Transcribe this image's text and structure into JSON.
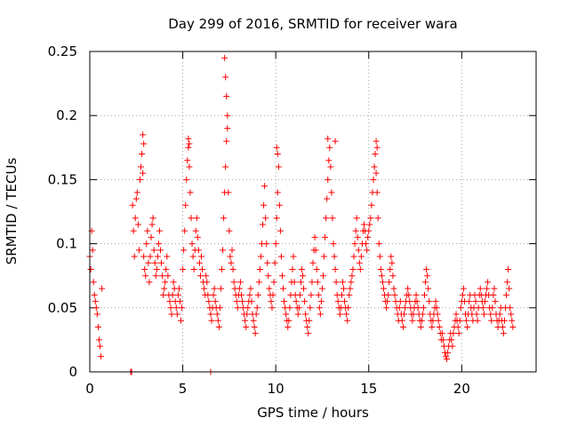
{
  "chart_data": {
    "type": "scatter",
    "title": "Day 299 of 2016, SRMTID for receiver wara",
    "xlabel": "GPS time / hours",
    "ylabel": "SRMTID / TECUs",
    "xlim": [
      0,
      24
    ],
    "ylim": [
      0,
      0.25
    ],
    "x_ticks": [
      0,
      5,
      10,
      15,
      20
    ],
    "x_tick_labels": [
      "0",
      "5",
      "10",
      "15",
      "20"
    ],
    "y_ticks": [
      0,
      0.05,
      0.1,
      0.15,
      0.2,
      0.25
    ],
    "y_tick_labels": [
      "0",
      "0.05",
      "0.1",
      "0.15",
      "0.2",
      "0.25"
    ],
    "grid": true,
    "marker": "+",
    "series": [
      {
        "name": "SRMTID",
        "color": "#ff0000",
        "x": [
          0.0,
          0.05,
          0.1,
          0.15,
          0.2,
          0.25,
          0.3,
          0.35,
          0.4,
          0.45,
          0.5,
          0.55,
          0.6,
          0.65,
          2.3,
          2.35,
          2.4,
          2.45,
          2.5,
          2.55,
          2.6,
          2.65,
          2.7,
          2.75,
          2.8,
          2.85,
          2.9,
          2.95,
          3.0,
          3.05,
          3.1,
          3.15,
          3.2,
          3.25,
          3.3,
          3.35,
          3.4,
          3.45,
          3.5,
          3.55,
          3.6,
          3.65,
          3.7,
          3.75,
          3.8,
          3.85,
          3.9,
          3.95,
          4.0,
          4.05,
          4.1,
          4.15,
          4.2,
          4.25,
          4.3,
          4.35,
          4.4,
          4.45,
          4.5,
          4.55,
          4.6,
          4.65,
          4.7,
          4.75,
          4.8,
          4.85,
          4.9,
          4.95,
          5.0,
          5.05,
          5.1,
          5.15,
          5.2,
          5.25,
          5.3,
          5.35,
          5.4,
          5.45,
          5.5,
          5.55,
          5.6,
          5.65,
          5.7,
          5.75,
          5.8,
          5.85,
          5.9,
          5.95,
          6.0,
          6.05,
          6.1,
          6.15,
          6.2,
          6.25,
          6.3,
          6.35,
          6.4,
          6.45,
          6.5,
          6.55,
          6.6,
          6.65,
          6.7,
          6.75,
          6.8,
          6.85,
          6.9,
          6.95,
          7.0,
          7.05,
          7.1,
          7.15,
          7.2,
          7.25,
          7.3,
          7.35,
          7.4,
          7.45,
          7.5,
          7.55,
          7.6,
          7.65,
          7.7,
          7.75,
          7.8,
          7.85,
          7.9,
          7.95,
          8.0,
          8.05,
          8.1,
          8.15,
          8.2,
          8.25,
          8.3,
          8.35,
          8.4,
          8.45,
          8.5,
          8.55,
          8.6,
          8.65,
          8.7,
          8.75,
          8.8,
          8.85,
          8.9,
          8.95,
          9.0,
          9.05,
          9.1,
          9.15,
          9.2,
          9.25,
          9.3,
          9.35,
          9.4,
          9.45,
          9.5,
          9.55,
          9.6,
          9.65,
          9.7,
          9.75,
          9.8,
          9.85,
          9.9,
          9.95,
          10.0,
          10.05,
          10.1,
          10.15,
          10.2,
          10.25,
          10.3,
          10.35,
          10.4,
          10.45,
          10.5,
          10.55,
          10.6,
          10.65,
          10.7,
          10.75,
          10.8,
          10.85,
          10.9,
          10.95,
          11.0,
          11.05,
          11.1,
          11.15,
          11.2,
          11.25,
          11.3,
          11.35,
          11.4,
          11.45,
          11.5,
          11.55,
          11.6,
          11.65,
          11.7,
          11.75,
          11.8,
          11.85,
          11.9,
          11.95,
          12.0,
          12.05,
          12.1,
          12.15,
          12.2,
          12.25,
          12.3,
          12.35,
          12.4,
          12.45,
          12.5,
          12.55,
          12.6,
          12.65,
          12.7,
          12.75,
          12.8,
          12.85,
          12.9,
          12.95,
          13.0,
          13.05,
          13.1,
          13.15,
          13.2,
          13.25,
          13.3,
          13.35,
          13.4,
          13.45,
          13.5,
          13.55,
          13.6,
          13.65,
          13.7,
          13.75,
          13.8,
          13.85,
          13.9,
          13.95,
          14.0,
          14.05,
          14.1,
          14.15,
          14.2,
          14.25,
          14.3,
          14.35,
          14.4,
          14.45,
          14.5,
          14.55,
          14.6,
          14.65,
          14.7,
          14.75,
          14.8,
          14.85,
          14.9,
          14.95,
          15.0,
          15.05,
          15.1,
          15.15,
          15.2,
          15.25,
          15.3,
          15.35,
          15.4,
          15.45,
          15.5,
          15.55,
          15.6,
          15.65,
          15.7,
          15.75,
          15.8,
          15.85,
          15.9,
          15.95,
          16.0,
          16.05,
          16.1,
          16.15,
          16.2,
          16.25,
          16.3,
          16.35,
          16.4,
          16.45,
          16.5,
          16.55,
          16.6,
          16.65,
          16.7,
          16.75,
          16.8,
          16.85,
          16.9,
          16.95,
          17.0,
          17.05,
          17.1,
          17.15,
          17.2,
          17.25,
          17.3,
          17.35,
          17.4,
          17.45,
          17.5,
          17.55,
          17.6,
          17.65,
          17.7,
          17.75,
          17.8,
          17.85,
          17.9,
          17.95,
          18.0,
          18.05,
          18.1,
          18.15,
          18.2,
          18.25,
          18.3,
          18.35,
          18.4,
          18.45,
          18.5,
          18.55,
          18.6,
          18.65,
          18.7,
          18.75,
          18.8,
          18.85,
          18.9,
          18.95,
          19.0,
          19.05,
          19.1,
          19.15,
          19.2,
          19.25,
          19.3,
          19.35,
          19.4,
          19.45,
          19.5,
          19.55,
          19.6,
          19.65,
          19.7,
          19.75,
          19.8,
          19.85,
          19.9,
          19.95,
          20.0,
          20.05,
          20.1,
          20.15,
          20.2,
          20.25,
          20.3,
          20.35,
          20.4,
          20.45,
          20.5,
          20.55,
          20.6,
          20.65,
          20.7,
          20.75,
          20.8,
          20.85,
          20.9,
          20.95,
          21.0,
          21.05,
          21.1,
          21.15,
          21.2,
          21.25,
          21.3,
          21.35,
          21.4,
          21.45,
          21.5,
          21.55,
          21.6,
          21.65,
          21.7,
          21.75,
          21.8,
          21.85,
          21.9,
          21.95,
          22.0,
          22.05,
          22.1,
          22.15,
          22.2,
          22.25,
          22.3,
          22.35,
          22.4,
          22.45,
          22.5,
          22.55,
          22.6,
          22.65,
          22.7,
          22.75,
          2.2,
          2.25,
          6.5,
          7.25,
          7.3,
          7.35,
          7.4,
          12.8,
          13.2,
          15.4,
          15.45,
          10.05,
          10.1,
          2.85,
          2.9,
          5.3,
          5.35
        ],
        "y": [
          0.09,
          0.08,
          0.11,
          0.095,
          0.07,
          0.06,
          0.055,
          0.05,
          0.045,
          0.035,
          0.025,
          0.02,
          0.012,
          0.065,
          0.13,
          0.11,
          0.09,
          0.12,
          0.135,
          0.14,
          0.115,
          0.095,
          0.15,
          0.16,
          0.17,
          0.155,
          0.09,
          0.08,
          0.075,
          0.1,
          0.11,
          0.085,
          0.07,
          0.09,
          0.105,
          0.115,
          0.12,
          0.095,
          0.085,
          0.075,
          0.08,
          0.09,
          0.1,
          0.11,
          0.095,
          0.085,
          0.075,
          0.06,
          0.065,
          0.07,
          0.08,
          0.09,
          0.075,
          0.06,
          0.055,
          0.05,
          0.045,
          0.06,
          0.07,
          0.065,
          0.055,
          0.05,
          0.045,
          0.06,
          0.065,
          0.055,
          0.04,
          0.05,
          0.08,
          0.095,
          0.11,
          0.13,
          0.15,
          0.165,
          0.175,
          0.16,
          0.14,
          0.12,
          0.1,
          0.09,
          0.08,
          0.095,
          0.11,
          0.12,
          0.105,
          0.095,
          0.085,
          0.075,
          0.09,
          0.08,
          0.07,
          0.065,
          0.06,
          0.075,
          0.07,
          0.06,
          0.055,
          0.05,
          0.045,
          0.04,
          0.05,
          0.06,
          0.065,
          0.055,
          0.05,
          0.045,
          0.04,
          0.035,
          0.05,
          0.065,
          0.08,
          0.095,
          0.12,
          0.14,
          0.16,
          0.18,
          0.2,
          0.14,
          0.11,
          0.09,
          0.085,
          0.095,
          0.08,
          0.07,
          0.065,
          0.06,
          0.055,
          0.05,
          0.06,
          0.065,
          0.07,
          0.06,
          0.055,
          0.05,
          0.045,
          0.04,
          0.035,
          0.045,
          0.05,
          0.055,
          0.06,
          0.065,
          0.055,
          0.045,
          0.04,
          0.035,
          0.03,
          0.045,
          0.05,
          0.06,
          0.07,
          0.08,
          0.09,
          0.1,
          0.115,
          0.13,
          0.145,
          0.12,
          0.1,
          0.085,
          0.075,
          0.065,
          0.06,
          0.055,
          0.05,
          0.06,
          0.07,
          0.085,
          0.1,
          0.12,
          0.14,
          0.16,
          0.13,
          0.11,
          0.09,
          0.075,
          0.065,
          0.055,
          0.05,
          0.045,
          0.04,
          0.035,
          0.04,
          0.05,
          0.06,
          0.07,
          0.08,
          0.09,
          0.07,
          0.06,
          0.055,
          0.05,
          0.045,
          0.05,
          0.06,
          0.07,
          0.08,
          0.075,
          0.065,
          0.055,
          0.045,
          0.04,
          0.035,
          0.03,
          0.04,
          0.05,
          0.06,
          0.07,
          0.085,
          0.095,
          0.105,
          0.095,
          0.08,
          0.07,
          0.06,
          0.05,
          0.045,
          0.055,
          0.065,
          0.075,
          0.09,
          0.105,
          0.12,
          0.135,
          0.15,
          0.165,
          0.175,
          0.16,
          0.14,
          0.12,
          0.1,
          0.09,
          0.08,
          0.07,
          0.06,
          0.055,
          0.05,
          0.045,
          0.05,
          0.06,
          0.07,
          0.065,
          0.055,
          0.05,
          0.045,
          0.04,
          0.05,
          0.06,
          0.065,
          0.07,
          0.075,
          0.08,
          0.09,
          0.1,
          0.11,
          0.12,
          0.105,
          0.095,
          0.085,
          0.08,
          0.09,
          0.1,
          0.11,
          0.115,
          0.11,
          0.1,
          0.095,
          0.105,
          0.11,
          0.115,
          0.12,
          0.13,
          0.14,
          0.15,
          0.16,
          0.17,
          0.155,
          0.14,
          0.12,
          0.1,
          0.09,
          0.08,
          0.075,
          0.07,
          0.065,
          0.06,
          0.055,
          0.05,
          0.055,
          0.06,
          0.07,
          0.08,
          0.09,
          0.085,
          0.075,
          0.065,
          0.06,
          0.055,
          0.05,
          0.045,
          0.04,
          0.05,
          0.055,
          0.045,
          0.04,
          0.035,
          0.045,
          0.05,
          0.055,
          0.06,
          0.065,
          0.06,
          0.055,
          0.05,
          0.045,
          0.04,
          0.045,
          0.05,
          0.055,
          0.06,
          0.055,
          0.05,
          0.045,
          0.04,
          0.035,
          0.04,
          0.045,
          0.05,
          0.06,
          0.07,
          0.08,
          0.075,
          0.065,
          0.055,
          0.045,
          0.04,
          0.035,
          0.04,
          0.045,
          0.05,
          0.055,
          0.05,
          0.045,
          0.04,
          0.035,
          0.03,
          0.025,
          0.03,
          0.025,
          0.02,
          0.015,
          0.012,
          0.01,
          0.015,
          0.02,
          0.025,
          0.03,
          0.025,
          0.02,
          0.03,
          0.035,
          0.04,
          0.045,
          0.04,
          0.035,
          0.03,
          0.04,
          0.05,
          0.055,
          0.06,
          0.065,
          0.055,
          0.045,
          0.04,
          0.035,
          0.045,
          0.055,
          0.06,
          0.05,
          0.045,
          0.04,
          0.05,
          0.06,
          0.055,
          0.045,
          0.04,
          0.05,
          0.06,
          0.065,
          0.06,
          0.055,
          0.05,
          0.045,
          0.055,
          0.06,
          0.065,
          0.07,
          0.06,
          0.05,
          0.045,
          0.04,
          0.05,
          0.06,
          0.065,
          0.055,
          0.045,
          0.04,
          0.035,
          0.04,
          0.045,
          0.05,
          0.04,
          0.035,
          0.03,
          0.04,
          0.05,
          0.06,
          0.07,
          0.08,
          0.065,
          0.05,
          0.045,
          0.04,
          0.035,
          0.0,
          0.0,
          0.0,
          0.245,
          0.23,
          0.215,
          0.19,
          0.182,
          0.18,
          0.18,
          0.175,
          0.175,
          0.17,
          0.185,
          0.178,
          0.182,
          0.178
        ]
      }
    ]
  }
}
